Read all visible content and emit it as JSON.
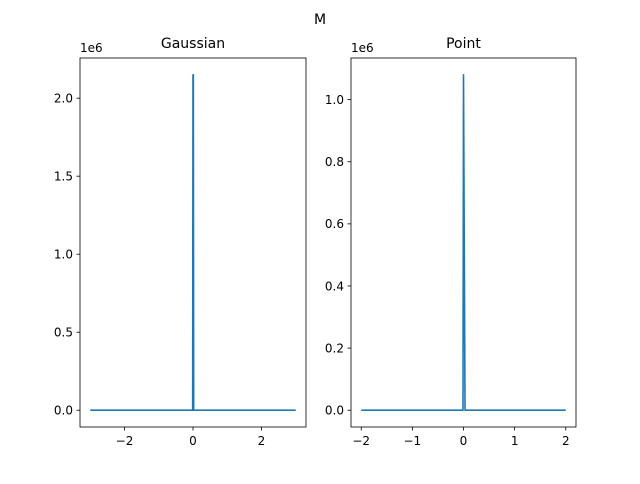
{
  "figure": {
    "suptitle": "M"
  },
  "colors": {
    "line": "#1f77b4",
    "axes": "#000000",
    "background": "#ffffff"
  },
  "chart_data": [
    {
      "type": "line",
      "title": "Gaussian",
      "xlabel": "",
      "ylabel": "",
      "y_offset_label": "1e6",
      "xlim": [
        -3.3,
        3.3
      ],
      "ylim": [
        -0.1075,
        2.2575
      ],
      "xticks": [
        -2,
        0,
        2
      ],
      "xtick_labels": [
        "−2",
        "0",
        "2"
      ],
      "yticks": [
        0,
        0.5,
        1.0,
        1.5,
        2.0
      ],
      "ytick_labels": [
        "0.0",
        "0.5",
        "1.0",
        "1.5",
        "2.0"
      ],
      "grid": false,
      "series": [
        {
          "x": [
            -3.0,
            -0.01,
            0.0,
            0.01,
            0.02,
            0.03,
            3.0
          ],
          "y": [
            0.0,
            0.0,
            2.15,
            2.15,
            0.0,
            0.0,
            0.0
          ]
        }
      ]
    },
    {
      "type": "line",
      "title": "Point",
      "xlabel": "",
      "ylabel": "",
      "y_offset_label": "1e6",
      "xlim": [
        -2.2,
        2.2
      ],
      "ylim": [
        -0.054,
        1.134
      ],
      "xticks": [
        -2,
        -1,
        0,
        1,
        2
      ],
      "xtick_labels": [
        "−2",
        "−1",
        "0",
        "1",
        "2"
      ],
      "yticks": [
        0,
        0.2,
        0.4,
        0.6,
        0.8,
        1.0
      ],
      "ytick_labels": [
        "0.0",
        "0.2",
        "0.4",
        "0.6",
        "0.8",
        "1.0"
      ],
      "grid": false,
      "series": [
        {
          "x": [
            -2.0,
            -0.01,
            0.0,
            0.03,
            0.05,
            2.0
          ],
          "y": [
            0.0,
            0.0,
            1.08,
            0.0,
            0.0,
            0.0
          ]
        }
      ]
    }
  ]
}
